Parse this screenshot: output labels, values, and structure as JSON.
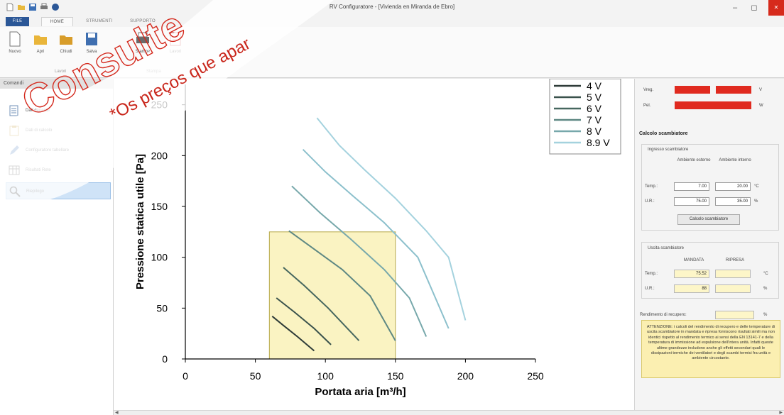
{
  "window": {
    "title": "RV Configuratore - [Vivienda en Miranda de Ebro]"
  },
  "tabs": [
    "FILE",
    "HOME",
    "STRUMENTI",
    "SUPPORTO"
  ],
  "ribbon": {
    "buttons": [
      "Nuovo",
      "Apri",
      "Chiudi",
      "Salva",
      "Stampa",
      "Lavori"
    ],
    "groups": [
      "Lavori",
      "Stampa"
    ]
  },
  "sidebar": {
    "header": "Comandi",
    "items": [
      {
        "label": "Dati generali",
        "icon": "document-icon"
      },
      {
        "label": "Dati di calcolo",
        "icon": "clipboard-icon"
      },
      {
        "label": "Configuratore tabellare",
        "icon": "pencil-icon"
      },
      {
        "label": "Risultati Rete",
        "icon": "table-icon"
      },
      {
        "label": "Riepilogo",
        "icon": "magnifier-icon"
      }
    ],
    "selected": 4
  },
  "chart_data": {
    "type": "line",
    "xlabel": "Portata aria [m³/h]",
    "ylabel": "Pressione statica utile [Pa]",
    "xlim": [
      0,
      250
    ],
    "ylim": [
      0,
      270
    ],
    "xticks": [
      0,
      50,
      100,
      150,
      200,
      250
    ],
    "yticks": [
      0,
      50,
      100,
      150,
      200,
      250
    ],
    "legend_placement": "top-right",
    "highlight_region": {
      "x": [
        60,
        150
      ],
      "y": [
        0,
        125
      ],
      "color": "#faf3c2"
    },
    "series": [
      {
        "name": "4 V",
        "color": "#2e3b38",
        "points": [
          [
            62,
            42
          ],
          [
            70,
            33
          ],
          [
            80,
            22
          ],
          [
            92,
            8
          ]
        ]
      },
      {
        "name": "5 V",
        "color": "#3a524c",
        "points": [
          [
            65,
            60
          ],
          [
            78,
            46
          ],
          [
            92,
            30
          ],
          [
            104,
            14
          ]
        ]
      },
      {
        "name": "6 V",
        "color": "#46675f",
        "points": [
          [
            70,
            90
          ],
          [
            85,
            72
          ],
          [
            102,
            50
          ],
          [
            124,
            18
          ]
        ]
      },
      {
        "name": "7 V",
        "color": "#5e8883",
        "points": [
          [
            74,
            126
          ],
          [
            92,
            108
          ],
          [
            112,
            88
          ],
          [
            132,
            62
          ],
          [
            150,
            18
          ]
        ]
      },
      {
        "name": "8 V",
        "color": "#77a8ab",
        "points": [
          [
            76,
            170
          ],
          [
            96,
            144
          ],
          [
            118,
            118
          ],
          [
            142,
            88
          ],
          [
            160,
            60
          ],
          [
            172,
            22
          ]
        ]
      },
      {
        "name": "8.9 V",
        "color": "#a4d2de",
        "points": [
          [
            94,
            237
          ],
          [
            110,
            210
          ],
          [
            128,
            186
          ],
          [
            150,
            158
          ],
          [
            172,
            126
          ],
          [
            188,
            100
          ],
          [
            200,
            38
          ]
        ]
      },
      {
        "name": "",
        "color": "#8cc0cc",
        "points": [
          [
            84,
            206
          ],
          [
            100,
            184
          ],
          [
            120,
            160
          ],
          [
            142,
            134
          ],
          [
            166,
            100
          ],
          [
            188,
            30
          ]
        ]
      }
    ]
  },
  "right_panel": {
    "vreg_label": "Vreg.",
    "vreg_unit": "V",
    "pel_label": "Pel.",
    "pel_unit": "W",
    "calc_title": "Calcolo scambiatore",
    "ingresso_title": "Ingresso scambiatore",
    "col_ext": "Ambiente esterno",
    "col_int": "Ambiente interno",
    "temp_label": "Temp.:",
    "ur_label": "U.R.:",
    "temp_ext": "7.00",
    "temp_int": "20.00",
    "ur_ext": "75.00",
    "ur_int": "35.00",
    "unit_c": "°C",
    "unit_pct": "%",
    "calc_button": "Calcolo scambiatore",
    "uscita_title": "Uscita scambiatore",
    "mandata": "MANDATA",
    "ripresa": "RIPRESA",
    "temp_out": "75.52",
    "ur_out": "88",
    "rendimento_label": "Rendimento di recupero:",
    "warning": "ATTENZIONE: i calcoli del rendimento di recupero e delle temperature di uscita scambiatore in mandata e ripresa forniscono risultati simili ma non identici rispetto al rendimento termico ai sensi della EN 13141-7 e della temperatura di immissione ad espulsione dell'intera unità. Infatti queste ultime grandezze includono anche gli effetti secondari quali le dissipazioni termiche dei ventilatori e degli scambi termici fra unità e ambiente circostante."
  },
  "watermark": {
    "line1": "Consulte",
    "line2": "*Os preços que apar"
  }
}
